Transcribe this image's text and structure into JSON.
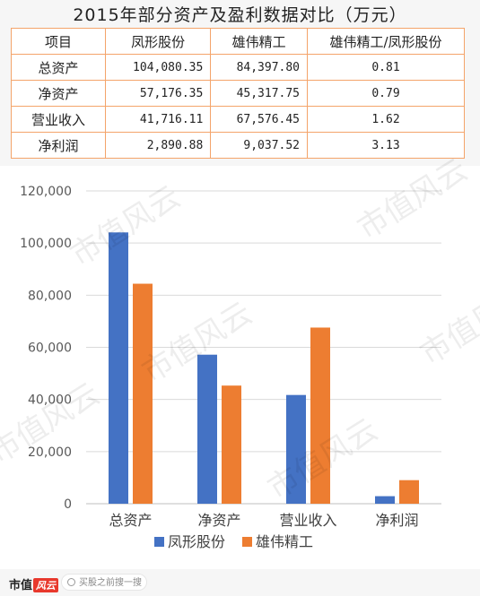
{
  "title": "2015年部分资产及盈利数据对比（万元）",
  "table": {
    "headers": [
      "项目",
      "凤形股份",
      "雄伟精工",
      "雄伟精工/凤形股份"
    ],
    "rows": [
      [
        "总资产",
        "104,080.35",
        "84,397.80",
        "0.81"
      ],
      [
        "净资产",
        "57,176.35",
        "45,317.75",
        "0.79"
      ],
      [
        "营业收入",
        "41,716.11",
        "67,576.45",
        "1.62"
      ],
      [
        "净利润",
        "2,890.88",
        "9,037.52",
        "3.13"
      ]
    ]
  },
  "chart_data": {
    "type": "bar",
    "categories": [
      "总资产",
      "净资产",
      "营业收入",
      "净利润"
    ],
    "series": [
      {
        "name": "凤形股份",
        "values": [
          104080.35,
          57176.35,
          41716.11,
          2890.88
        ],
        "color": "#4472c4"
      },
      {
        "name": "雄伟精工",
        "values": [
          84397.8,
          45317.75,
          67576.45,
          9037.52
        ],
        "color": "#ed7d31"
      }
    ],
    "ylim": [
      0,
      120000
    ],
    "yticks": [
      "0",
      "20,000",
      "40,000",
      "60,000",
      "80,000",
      "100,000",
      "120,000"
    ],
    "ytick_values": [
      0,
      20000,
      40000,
      60000,
      80000,
      100000,
      120000
    ],
    "grid": true,
    "legend_position": "bottom"
  },
  "watermark": "市值风云",
  "footer": {
    "brand": "市值",
    "brand_mark": "风云",
    "search_placeholder": "买股之前搜一搜"
  }
}
